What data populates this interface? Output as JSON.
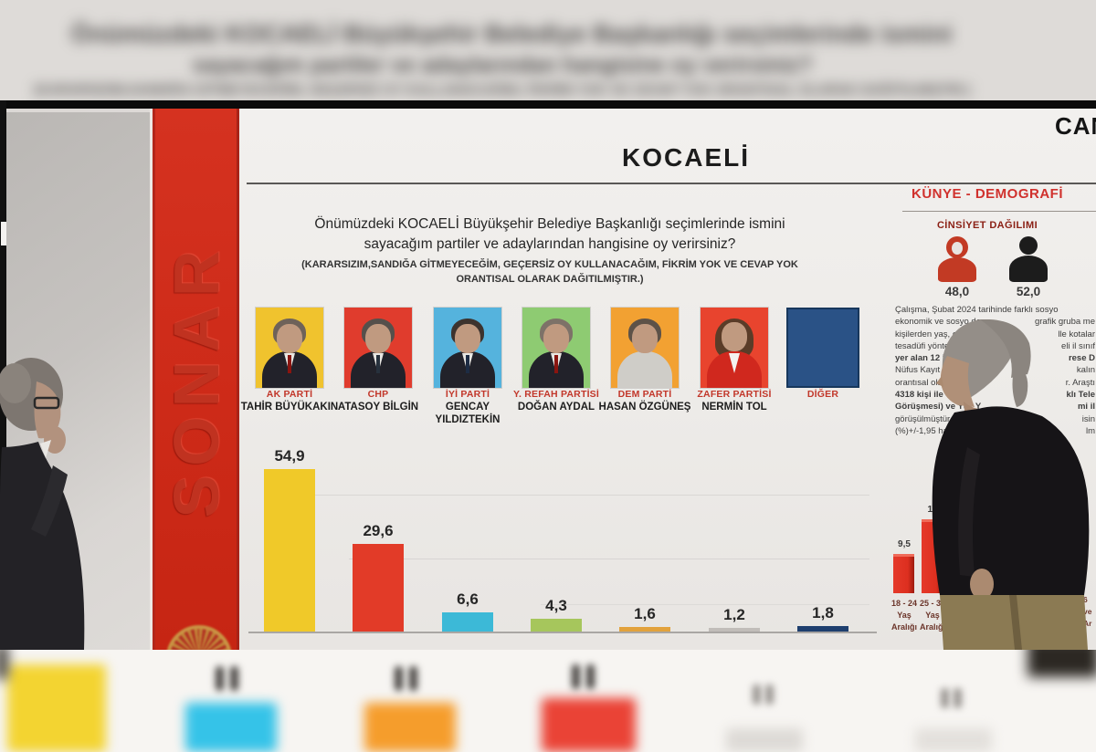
{
  "colors": {
    "banner_red": "#cd2a18",
    "accent_red": "#d0312d",
    "panel_bg": "#f0eeec",
    "navy_other": "#2a5286"
  },
  "top_banner": {
    "line1": "Önümüzdeki KOCAELİ Büyükşehir Belediye Başkanlığı seçimlerinde ismini",
    "line2": "sayacağım partiler ve adaylarından hangisine oy verirsiniz?",
    "line3": "(KARARSIZIM,SANDIĞA GİTMEYECEĞİM, GEÇERSİZ OY KULLANACAĞIM, FİKRİM YOK VE CEVAP YOK ORANTISAL OLARAK DAĞITILMIŞTIR.)"
  },
  "live_badge": "CAN",
  "brand": {
    "name": "SONAR"
  },
  "panel": {
    "title": "KOCAELİ",
    "question_line1": "Önümüzdeki KOCAELİ Büyükşehir Belediye Başkanlığı seçimlerinde ismini",
    "question_line2": "sayacağım partiler ve adaylarından hangisine oy verirsiniz?",
    "question_note1": "(KARARSIZIM,SANDIĞA GİTMEYECEĞİM, GEÇERSİZ OY KULLANACAĞIM, FİKRİM YOK VE CEVAP YOK",
    "question_note2": "ORANTISAL OLARAK DAĞITILMIŞTIR.)"
  },
  "candidates": [
    {
      "party": "AK PARTİ",
      "name": "TAHİR BÜYÜKAKIN",
      "value": 54.9,
      "value_label": "54,9",
      "photo_bg": "#f0c32e",
      "bar_color": "#f0c929"
    },
    {
      "party": "CHP",
      "name": "ATASOY BİLGİN",
      "value": 29.6,
      "value_label": "29,6",
      "photo_bg": "#e03c2d",
      "bar_color": "#e23b28"
    },
    {
      "party": "İYİ PARTİ",
      "name": "GENCAY YILDIZTEKİN",
      "value": 6.6,
      "value_label": "6,6",
      "photo_bg": "#55b3dd",
      "bar_color": "#3cb9d7"
    },
    {
      "party": "Y. REFAH PARTİSİ",
      "name": "DOĞAN AYDAL",
      "value": 4.3,
      "value_label": "4,3",
      "photo_bg": "#8ecb72",
      "bar_color": "#a6c65c"
    },
    {
      "party": "DEM PARTİ",
      "name": "HASAN ÖZGÜNEŞ",
      "value": 1.6,
      "value_label": "1,6",
      "photo_bg": "#f2a132",
      "bar_color": "#e2a23c"
    },
    {
      "party": "ZAFER PARTİSİ",
      "name": "NERMİN TOL",
      "value": 1.2,
      "value_label": "1,2",
      "photo_bg": "#e8442e",
      "bar_color": "#c1bdb9"
    },
    {
      "party": "DİĞER",
      "name": "",
      "value": 1.8,
      "value_label": "1,8",
      "photo_bg": "#2a5286",
      "bar_color": "#1e3f6e"
    }
  ],
  "chart_data": [
    {
      "type": "bar",
      "title": "KOCAELİ",
      "categories": [
        "AK PARTİ - TAHİR BÜYÜKAKIN",
        "CHP - ATASOY BİLGİN",
        "İYİ PARTİ - GENCAY YILDIZTEKİN",
        "Y. REFAH PARTİSİ - DOĞAN AYDAL",
        "DEM PARTİ - HASAN ÖZGÜNEŞ",
        "ZAFER PARTİSİ - NERMİN TOL",
        "DİĞER"
      ],
      "values": [
        54.9,
        29.6,
        6.6,
        4.3,
        1.6,
        1.2,
        1.8
      ],
      "data_labels": [
        "54,9",
        "29,6",
        "6,6",
        "4,3",
        "1,6",
        "1,2",
        "1,8"
      ],
      "colors": [
        "#f0c929",
        "#e23b28",
        "#3cb9d7",
        "#a6c65c",
        "#e2a23c",
        "#c1bdb9",
        "#1e3f6e"
      ],
      "xlabel": "",
      "ylabel": "",
      "ylim": [
        0,
        60
      ],
      "grid": true,
      "legend": false
    },
    {
      "type": "bar",
      "title": "CİNSİYET DAĞILIMI",
      "categories": [
        "Kadın",
        "Erkek"
      ],
      "values": [
        48.0,
        52.0
      ],
      "data_labels": [
        "48,0",
        "52,0"
      ],
      "note": "shown as female/male pictograms"
    },
    {
      "type": "bar",
      "title": "Yaş Aralığı (partially occluded by person)",
      "categories": [
        "18 - 24 Yaş Aralığı",
        "25 - 34 Yaş Aralığı"
      ],
      "values": [
        9.5,
        18
      ],
      "data_labels": [
        "9,5",
        "18"
      ],
      "colors": [
        "#dd2f1f",
        "#dd2f1f"
      ],
      "note": "second value partially hidden; further columns occluded"
    }
  ],
  "demografi": {
    "header": "KÜNYE - DEMOGRAFİ",
    "gender_title": "CİNSİYET DAĞILIMI",
    "female_value": "48,0",
    "male_value": "52,0",
    "methodology_lines": [
      {
        "left": "Çalışma, Şubat 2024 tarihinde farklı sosyo",
        "right": ""
      },
      {
        "left": "ekonomik ve sosyo dem",
        "right": "grafik gruba me"
      },
      {
        "left": "kişilerden yaş, cins",
        "right": "lle kotalar"
      },
      {
        "left": "tesadüfi yöntemle",
        "right": "eli il sınıf"
      },
      {
        "left": "yer alan 12 ilçede",
        "right": "rese D"
      },
      {
        "left": "Nüfus Kayıt Siste",
        "right": "kalın"
      },
      {
        "left": "orantısal olarak g",
        "right": "r. Araştı"
      },
      {
        "left": "4318 kişi ile CATI(",
        "right": "klı Tele"
      },
      {
        "left": "Görüşmesi) ve Yüz Y",
        "right": "mi il"
      },
      {
        "left": "görüşülmüştür. 0,9",
        "right": "isin"
      },
      {
        "left": "(%)+/-1,95 hata pa",
        "right": "lm"
      }
    ],
    "age_chart": {
      "bars": [
        {
          "value": 9.5,
          "value_label": "9,5",
          "label_line1": "18 - 24",
          "label_line2": "Yaş",
          "label_line3": "Aralığı"
        },
        {
          "value": 18,
          "value_label": "18",
          "label_line1": "25 - 34",
          "label_line2": "Yaş",
          "label_line3": "Aralığı"
        }
      ],
      "edge_fragment_line1": "6",
      "edge_fragment_line2": "ve",
      "edge_fragment_line3": "Ar"
    }
  },
  "footer_strip": {
    "bars": [
      {
        "color": "#f3d431"
      },
      {
        "color": "#35c3e8"
      },
      {
        "color": "#f59d2c"
      },
      {
        "color": "#ea4336"
      },
      {
        "color": "#dddad6"
      },
      {
        "color": "#e3e0dc"
      }
    ]
  }
}
